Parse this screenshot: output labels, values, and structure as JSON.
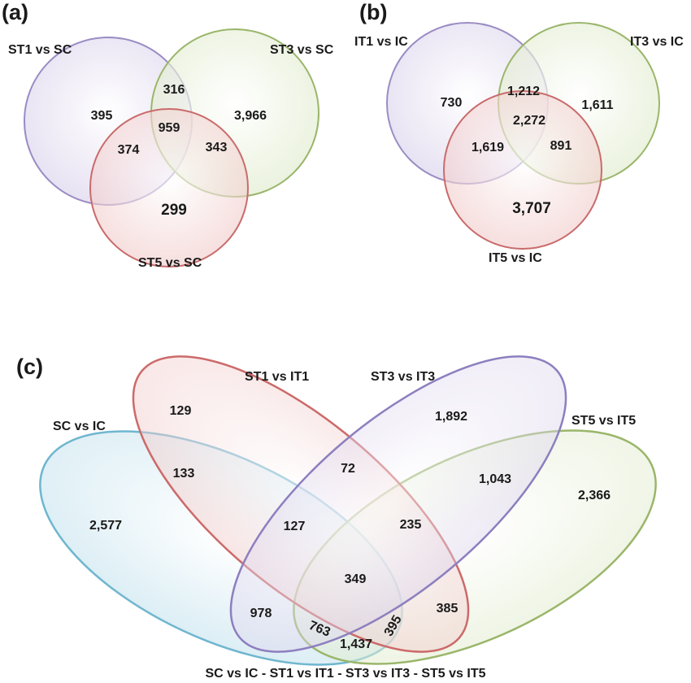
{
  "panels": {
    "a": {
      "label": "(a)",
      "sets": [
        {
          "name": "ST1 vs SC",
          "color": "#9b8cc4",
          "fill": "#ddd6ee"
        },
        {
          "name": "ST3 vs SC",
          "color": "#9ab66a",
          "fill": "#e2ecd2"
        },
        {
          "name": "ST5 vs SC",
          "color": "#c96b6b",
          "fill": "#f2d0cf"
        }
      ],
      "regions": {
        "st1_only": "395",
        "st3_only": "3,966",
        "st5_only": "299",
        "st1_st3": "316",
        "st1_st5": "374",
        "st3_st5": "343",
        "all": "959"
      }
    },
    "b": {
      "label": "(b)",
      "sets": [
        {
          "name": "IT1 vs IC",
          "color": "#9b8cc4",
          "fill": "#ddd6ee"
        },
        {
          "name": "IT3 vs IC",
          "color": "#9ab66a",
          "fill": "#e2ecd2"
        },
        {
          "name": "IT5 vs IC",
          "color": "#c96b6b",
          "fill": "#f2d0cf"
        }
      ],
      "regions": {
        "it1_only": "730",
        "it3_only": "1,611",
        "it5_only": "3,707",
        "it1_it3": "1,212",
        "it1_it5": "1,619",
        "it3_it5": "891",
        "all": "2,272"
      }
    },
    "c": {
      "label": "(c)",
      "sets": [
        {
          "name": "SC vs IC",
          "color": "#6fb6cf",
          "fill": "#d3ebf3"
        },
        {
          "name": "ST1 vs IT1",
          "color": "#cc6a6a",
          "fill": "#f5d3d2"
        },
        {
          "name": "ST3 vs IT3",
          "color": "#8d7fbf",
          "fill": "#ddd8ef"
        },
        {
          "name": "ST5 vs IT5",
          "color": "#9ab66a",
          "fill": "#e4edd3"
        }
      ],
      "regions": {
        "r129": "129",
        "r1892": "1,892",
        "r133": "133",
        "r72": "72",
        "r1043": "1,043",
        "r2577": "2,577",
        "r2366": "2,366",
        "r127": "127",
        "r235": "235",
        "r349": "349",
        "r978": "978",
        "r385": "385",
        "r763": "763",
        "r395": "395",
        "r1437": "1,437"
      },
      "caption": "SC vs IC - ST1 vs IT1 - ST3 vs IT3 - ST5 vs IT5"
    }
  }
}
